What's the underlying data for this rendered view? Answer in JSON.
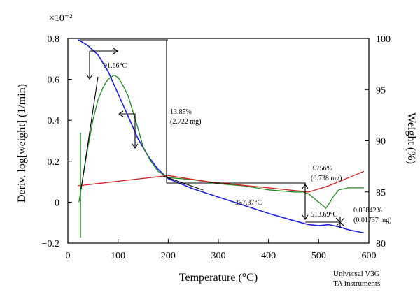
{
  "chart_data": {
    "type": "line",
    "x_axis": {
      "label": "Temperature (°C)",
      "range": [
        0,
        600
      ],
      "ticks": [
        0,
        100,
        200,
        300,
        400,
        500,
        600
      ]
    },
    "y_left": {
      "label": "Deriv. log[weight] (1/min)",
      "multiplier": "×10⁻²",
      "range": [
        -0.2,
        0.8
      ],
      "ticks": [
        -0.2,
        0,
        0.2,
        0.4,
        0.6,
        0.8
      ],
      "tick_labels": [
        "−0.2",
        "0",
        "0.2",
        "0.4",
        "0.6",
        "0.8"
      ]
    },
    "y_right": {
      "label": "Weight (%)",
      "range": [
        80,
        100
      ],
      "ticks": [
        80,
        85,
        90,
        95,
        100
      ]
    },
    "grid": false,
    "series": [
      {
        "axis": "right",
        "color": "#1f1fe0",
        "points": [
          [
            20,
            99.9
          ],
          [
            40,
            99.3
          ],
          [
            60,
            98.4
          ],
          [
            80,
            96.8
          ],
          [
            100,
            94.6
          ],
          [
            120,
            92.4
          ],
          [
            140,
            90.2
          ],
          [
            160,
            88.5
          ],
          [
            180,
            87.2
          ],
          [
            200,
            86.3
          ],
          [
            250,
            85.3
          ],
          [
            300,
            84.5
          ],
          [
            350,
            83.7
          ],
          [
            400,
            82.9
          ],
          [
            450,
            82.2
          ],
          [
            480,
            81.8
          ],
          [
            500,
            81.7
          ],
          [
            520,
            81.8
          ],
          [
            540,
            81.6
          ],
          [
            560,
            81.3
          ],
          [
            580,
            81.1
          ],
          [
            590,
            81.0
          ]
        ]
      },
      {
        "axis": "left",
        "color": "#1e8a1e",
        "points": [
          [
            22,
            0.0
          ],
          [
            30,
            0.12
          ],
          [
            40,
            0.27
          ],
          [
            50,
            0.4
          ],
          [
            60,
            0.5
          ],
          [
            70,
            0.56
          ],
          [
            80,
            0.6
          ],
          [
            92,
            0.62
          ],
          [
            100,
            0.61
          ],
          [
            110,
            0.57
          ],
          [
            120,
            0.52
          ],
          [
            130,
            0.44
          ],
          [
            140,
            0.36
          ],
          [
            150,
            0.27
          ],
          [
            165,
            0.2
          ],
          [
            180,
            0.15
          ],
          [
            200,
            0.12
          ],
          [
            250,
            0.11
          ],
          [
            300,
            0.09
          ],
          [
            350,
            0.08
          ],
          [
            400,
            0.06
          ],
          [
            450,
            0.05
          ],
          [
            470,
            0.05
          ],
          [
            480,
            0.04
          ],
          [
            490,
            0.02
          ],
          [
            500,
            0.0
          ],
          [
            505,
            -0.01
          ],
          [
            510,
            -0.02
          ],
          [
            514,
            -0.03
          ],
          [
            520,
            -0.01
          ],
          [
            530,
            0.03
          ],
          [
            540,
            0.06
          ],
          [
            560,
            0.07
          ],
          [
            580,
            0.07
          ],
          [
            590,
            0.07
          ]
        ]
      },
      {
        "axis": "left",
        "color": "#d81f1f",
        "points": [
          [
            20,
            0.08
          ],
          [
            200,
            0.13
          ],
          [
            280,
            0.1
          ],
          [
            400,
            0.07
          ],
          [
            480,
            0.05
          ],
          [
            520,
            0.08
          ],
          [
            560,
            0.12
          ],
          [
            590,
            0.15
          ]
        ]
      }
    ],
    "annotations": [
      {
        "text": "91.66°C"
      },
      {
        "text": "13.85%"
      },
      {
        "text": "(2.722 mg)"
      },
      {
        "text": "357.37°C"
      },
      {
        "text": "3.756%"
      },
      {
        "text": "(0.738 mg)"
      },
      {
        "text": "513.69°C"
      },
      {
        "text": "0.08842%"
      },
      {
        "text": "(0.01737 mg)"
      }
    ],
    "footer": [
      "Universal V3G",
      "TA instruments"
    ]
  }
}
